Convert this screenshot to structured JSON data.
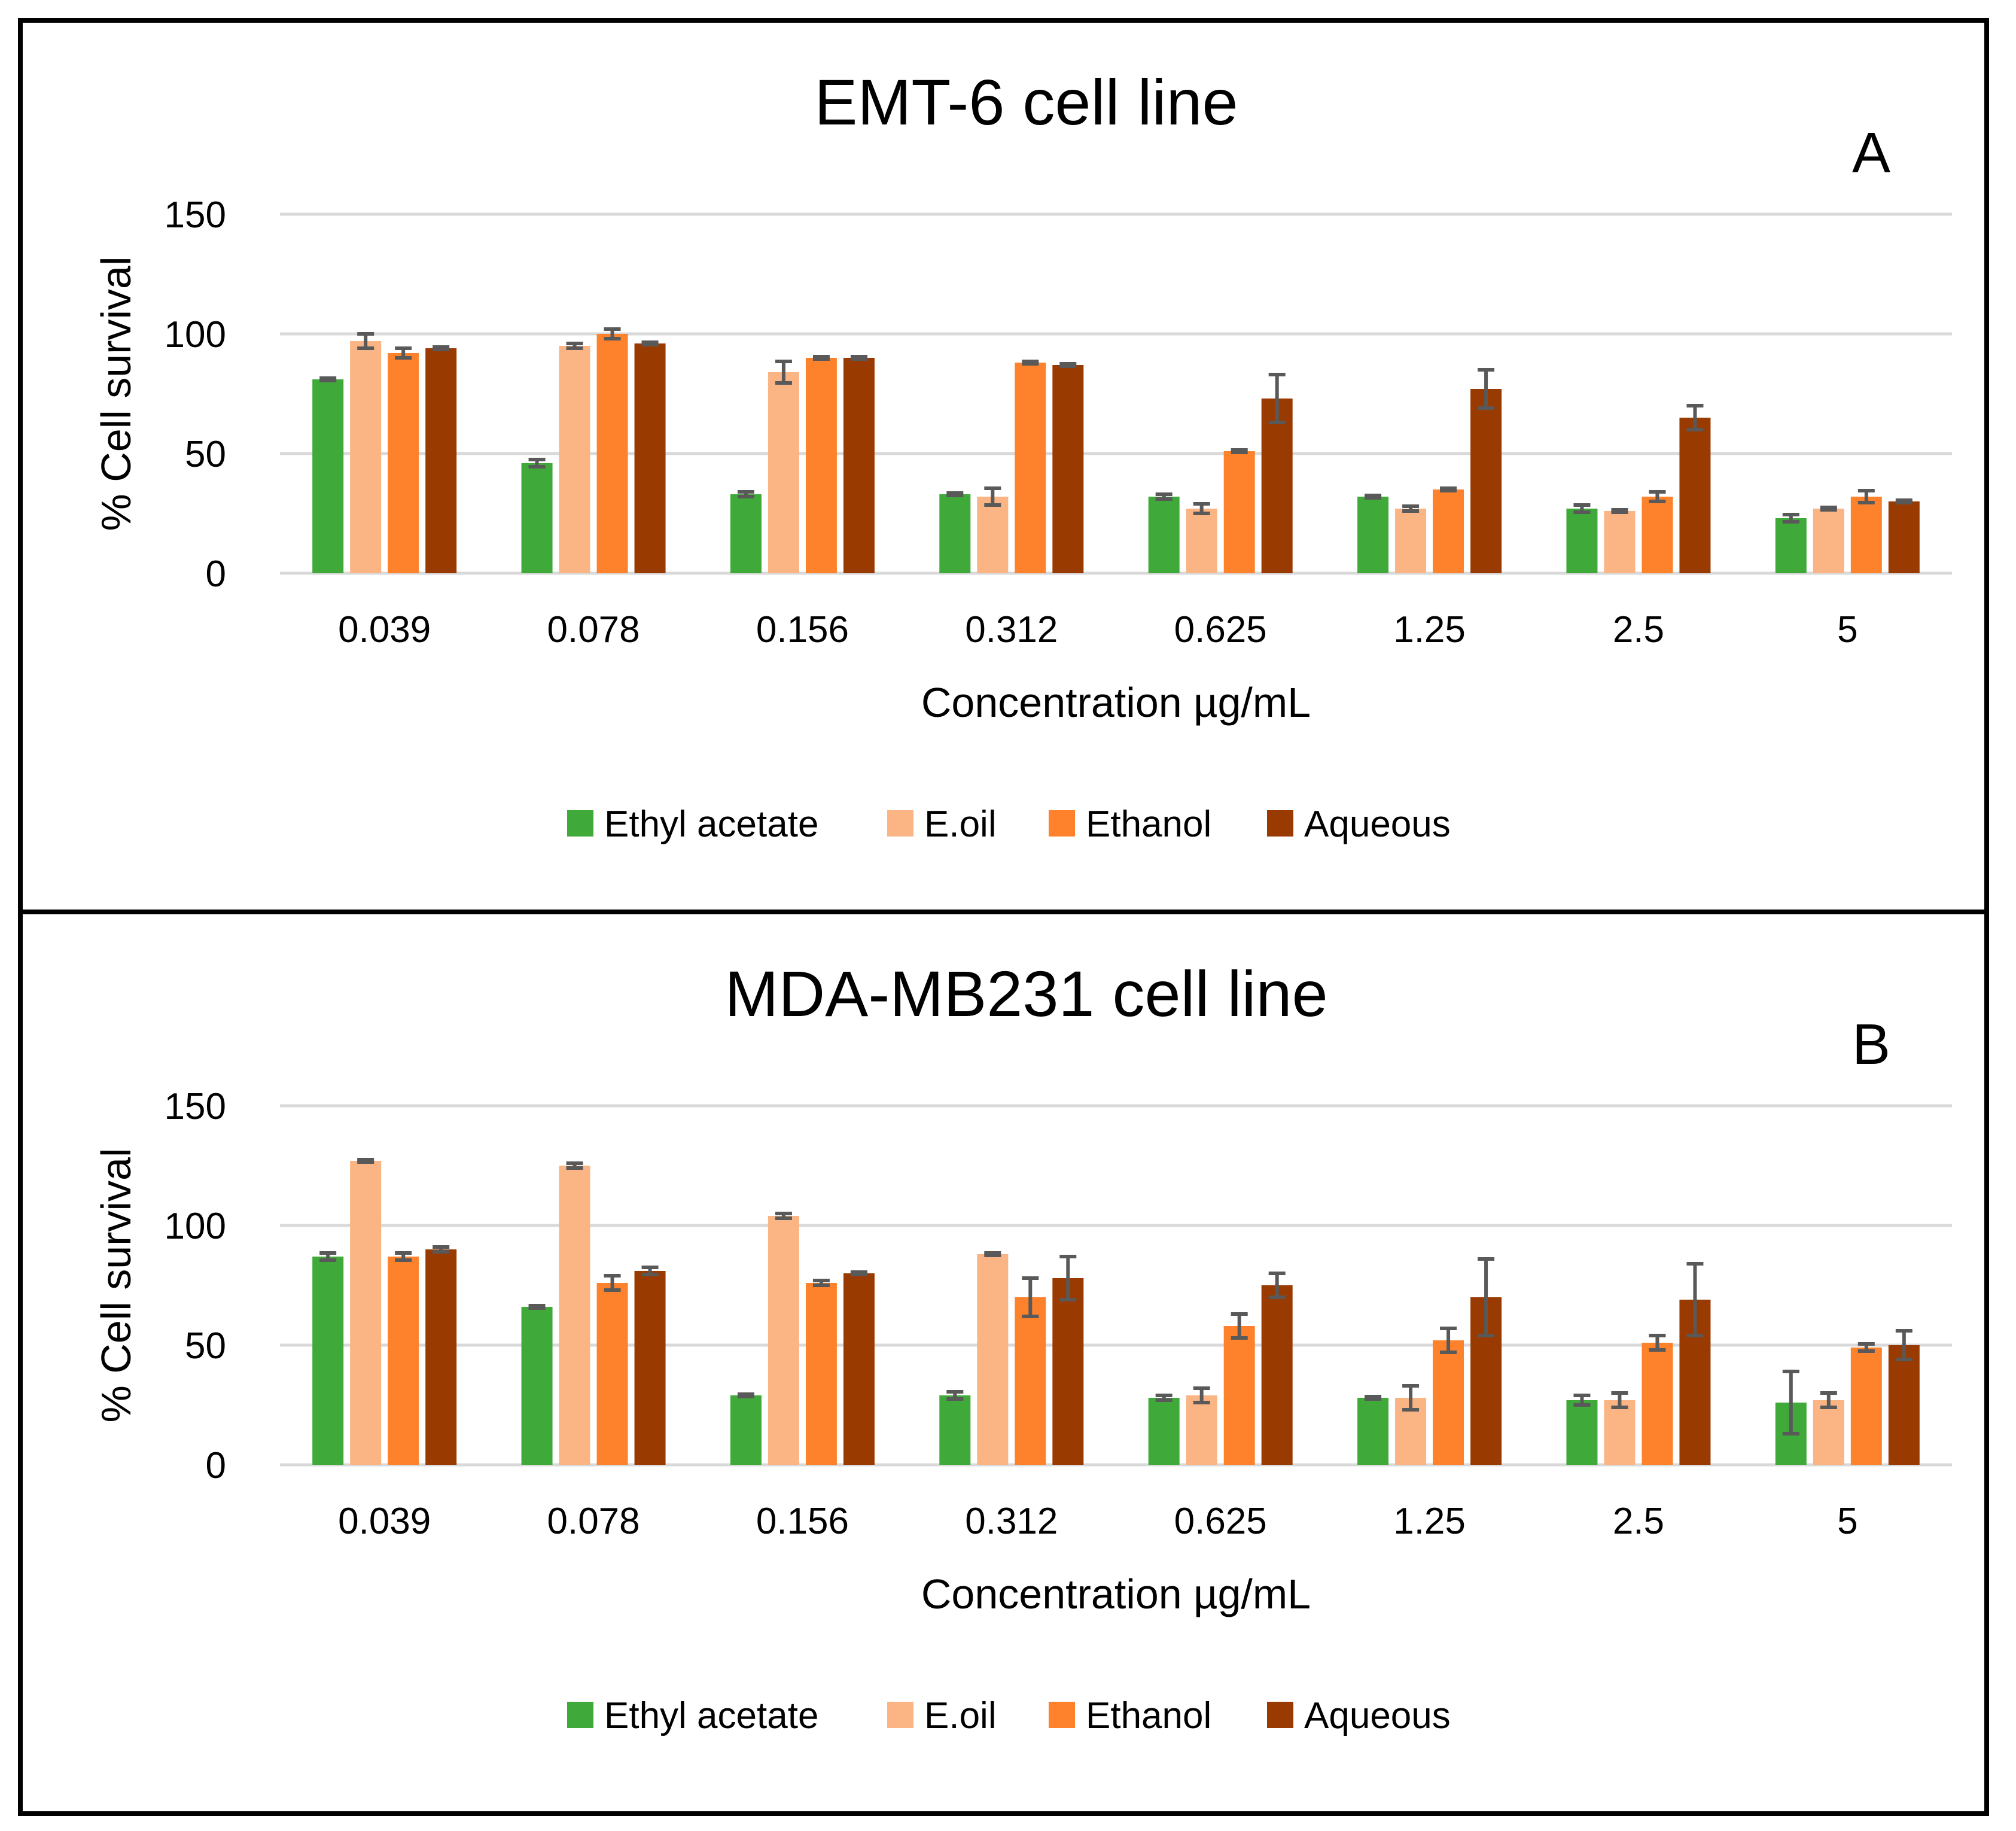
{
  "chart_data": [
    {
      "type": "bar",
      "panel_letter": "A",
      "title": "EMT-6 cell line",
      "xlabel": "Concentration µg/mL",
      "ylabel": "% Cell survival",
      "ylim": [
        0,
        150
      ],
      "yticks": [
        "0",
        "50",
        "100",
        "150"
      ],
      "grid": true,
      "legend_position": "bottom",
      "categories": [
        "0.039",
        "0.078",
        "0.156",
        "0.312",
        "0.625",
        "1.25",
        "2.5",
        "5"
      ],
      "series": [
        {
          "name": "Ethyl acetate",
          "color": "#3faa3a",
          "values": [
            81,
            46,
            33,
            33,
            32,
            32,
            27,
            23
          ],
          "errors": [
            0.5,
            1.5,
            1,
            0.5,
            1,
            0.5,
            1.5,
            1.5
          ]
        },
        {
          "name": "E.oil",
          "color": "#fbb484",
          "values": [
            97,
            95,
            84,
            32,
            27,
            27,
            26,
            27
          ],
          "errors": [
            3,
            1,
            4.5,
            3.5,
            2,
            1,
            0.5,
            0.5
          ]
        },
        {
          "name": "Ethanol",
          "color": "#fd822b",
          "values": [
            92,
            100,
            90,
            88,
            51,
            35,
            32,
            32
          ],
          "errors": [
            2,
            2,
            0.5,
            0.5,
            0.5,
            0.5,
            2,
            2.5
          ]
        },
        {
          "name": "Aqueous",
          "color": "#993a00",
          "values": [
            94,
            96,
            90,
            87,
            73,
            77,
            65,
            30
          ],
          "errors": [
            0.5,
            0.5,
            0.5,
            0.5,
            10,
            8,
            5,
            0.5
          ]
        }
      ]
    },
    {
      "type": "bar",
      "panel_letter": "B",
      "title": "MDA-MB231 cell line",
      "xlabel": "Concentration µg/mL",
      "ylabel": "% Cell survival",
      "ylim": [
        0,
        150
      ],
      "yticks": [
        "0",
        "50",
        "100",
        "150"
      ],
      "grid": true,
      "legend_position": "bottom",
      "categories": [
        "0.039",
        "0.078",
        "0.156",
        "0.312",
        "0.625",
        "1.25",
        "2.5",
        "5"
      ],
      "series": [
        {
          "name": "Ethyl acetate",
          "color": "#3faa3a",
          "values": [
            87,
            66,
            29,
            29,
            28,
            28,
            27,
            26
          ],
          "errors": [
            1.5,
            0.5,
            0.5,
            1.5,
            1,
            0.5,
            2,
            13
          ]
        },
        {
          "name": "E.oil",
          "color": "#fbb484",
          "values": [
            127,
            125,
            104,
            88,
            29,
            28,
            27,
            27
          ],
          "errors": [
            0.5,
            1,
            1,
            0.5,
            3,
            5,
            3,
            3
          ]
        },
        {
          "name": "Ethanol",
          "color": "#fd822b",
          "values": [
            87,
            76,
            76,
            70,
            58,
            52,
            51,
            49
          ],
          "errors": [
            1.5,
            3,
            1,
            8,
            5,
            5,
            3,
            1.5
          ]
        },
        {
          "name": "Aqueous",
          "color": "#993a00",
          "values": [
            90,
            81,
            80,
            78,
            75,
            70,
            69,
            50
          ],
          "errors": [
            1,
            1.5,
            0.5,
            9,
            5,
            16,
            15,
            6
          ]
        }
      ]
    }
  ]
}
